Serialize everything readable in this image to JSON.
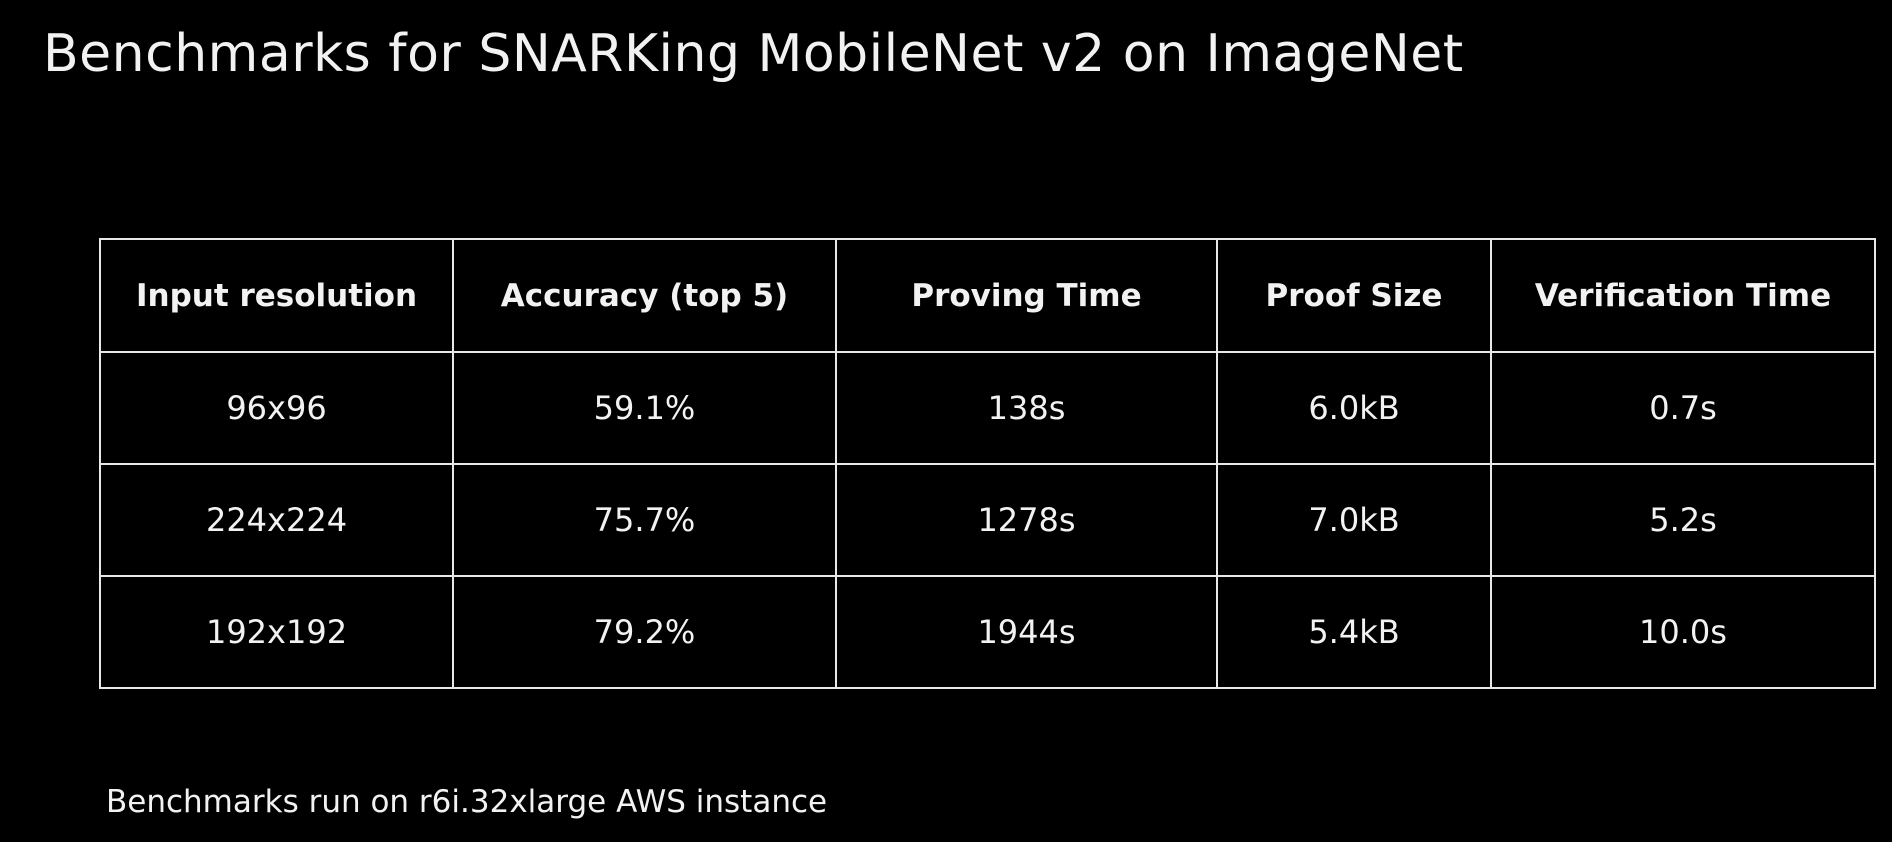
{
  "header": {
    "title": "Benchmarks for SNARKing MobileNet v2 on ImageNet"
  },
  "table": {
    "columns": [
      "Input resolution",
      "Accuracy (top 5)",
      "Proving Time",
      "Proof Size",
      "Verification Time"
    ],
    "rows": [
      [
        "96x96",
        "59.1%",
        "138s",
        "6.0kB",
        "0.7s"
      ],
      [
        "224x224",
        "75.7%",
        "1278s",
        "7.0kB",
        "5.2s"
      ],
      [
        "192x192",
        "79.2%",
        "1944s",
        "5.4kB",
        "10.0s"
      ]
    ]
  },
  "footnote": "Benchmarks run on r6i.32xlarge AWS instance"
}
